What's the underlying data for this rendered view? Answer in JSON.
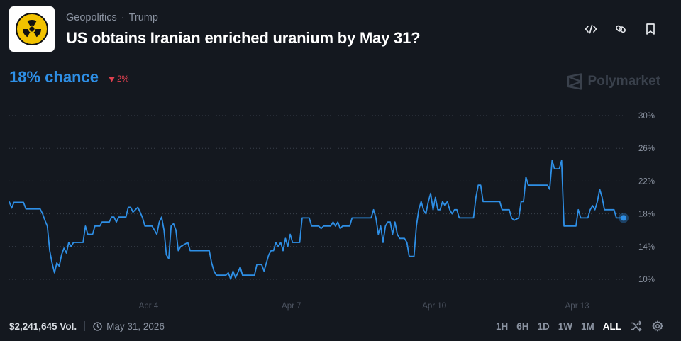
{
  "header": {
    "breadcrumb": [
      "Geopolitics",
      "Trump"
    ],
    "separator": "·",
    "title": "US obtains Iranian enriched uranium by May 31?"
  },
  "icons": {
    "market": "radiation-icon",
    "actions": [
      "embed-code-icon",
      "link-icon",
      "bookmark-icon"
    ],
    "brand": "polymarket-logo-icon",
    "delta": "down-triangle-icon",
    "date": "clock-icon",
    "tools": [
      "shuffle-icon",
      "gear-icon"
    ]
  },
  "summary": {
    "chance": "18% chance",
    "delta": "2%",
    "brand": "Polymarket"
  },
  "footer": {
    "volume": "$2,241,645 Vol.",
    "end_date": "May 31, 2026",
    "ranges": [
      "1H",
      "6H",
      "1D",
      "1W",
      "1M",
      "ALL"
    ],
    "active_range": "ALL"
  },
  "colors": {
    "background": "#14181f",
    "line": "#2e8fe6",
    "delta": "#e0404f",
    "grid": "#3a414c",
    "muted_text": "#8a92a0"
  },
  "chart_data": {
    "type": "line",
    "ylim": [
      8,
      31
    ],
    "yticks": [
      30,
      26,
      22,
      18,
      14,
      10
    ],
    "ytick_labels": [
      "30%",
      "26%",
      "22%",
      "18%",
      "14%",
      "10%"
    ],
    "x_unit": "days from Apr 1",
    "xticks": [
      3,
      6,
      9,
      12
    ],
    "xtick_labels": [
      "Apr 4",
      "Apr 7",
      "Apr 10",
      "Apr 13"
    ],
    "xlim": [
      0.0,
      12.4
    ],
    "grid": true,
    "series": [
      {
        "values": [
          [
            0.0,
            19.5
          ],
          [
            0.05,
            18.7
          ],
          [
            0.1,
            19.4
          ],
          [
            0.3,
            19.4
          ],
          [
            0.35,
            18.6
          ],
          [
            0.65,
            18.6
          ],
          [
            0.7,
            18.0
          ],
          [
            0.75,
            17.2
          ],
          [
            0.8,
            16.5
          ],
          [
            0.85,
            13.5
          ],
          [
            0.9,
            12.0
          ],
          [
            0.95,
            10.8
          ],
          [
            1.0,
            12.0
          ],
          [
            1.05,
            11.6
          ],
          [
            1.1,
            13.0
          ],
          [
            1.15,
            13.8
          ],
          [
            1.2,
            13.2
          ],
          [
            1.25,
            14.5
          ],
          [
            1.3,
            14.0
          ],
          [
            1.35,
            14.5
          ],
          [
            1.55,
            14.5
          ],
          [
            1.6,
            16.5
          ],
          [
            1.65,
            15.5
          ],
          [
            1.75,
            15.5
          ],
          [
            1.8,
            16.5
          ],
          [
            1.9,
            16.5
          ],
          [
            1.95,
            17.0
          ],
          [
            2.1,
            17.0
          ],
          [
            2.15,
            17.6
          ],
          [
            2.2,
            17.6
          ],
          [
            2.25,
            17.0
          ],
          [
            2.3,
            17.6
          ],
          [
            2.45,
            17.6
          ],
          [
            2.5,
            18.8
          ],
          [
            2.55,
            18.8
          ],
          [
            2.6,
            18.2
          ],
          [
            2.7,
            18.8
          ],
          [
            2.75,
            18.2
          ],
          [
            2.8,
            17.5
          ],
          [
            2.85,
            16.5
          ],
          [
            2.95,
            16.5
          ],
          [
            3.0,
            16.5
          ],
          [
            3.05,
            16.0
          ],
          [
            3.1,
            15.5
          ],
          [
            3.15,
            17.0
          ],
          [
            3.2,
            17.6
          ],
          [
            3.25,
            16.0
          ],
          [
            3.3,
            13.0
          ],
          [
            3.35,
            12.5
          ],
          [
            3.4,
            16.5
          ],
          [
            3.45,
            16.8
          ],
          [
            3.5,
            16.0
          ],
          [
            3.55,
            13.5
          ],
          [
            3.6,
            14.0
          ],
          [
            3.75,
            14.5
          ],
          [
            3.8,
            13.5
          ],
          [
            3.95,
            13.5
          ],
          [
            4.0,
            13.5
          ],
          [
            4.1,
            13.5
          ],
          [
            4.15,
            13.5
          ],
          [
            4.2,
            13.5
          ],
          [
            4.25,
            12.0
          ],
          [
            4.3,
            11.0
          ],
          [
            4.35,
            10.5
          ],
          [
            4.55,
            10.5
          ],
          [
            4.6,
            10.8
          ],
          [
            4.65,
            10.0
          ],
          [
            4.7,
            11.0
          ],
          [
            4.75,
            10.2
          ],
          [
            4.8,
            10.8
          ],
          [
            4.85,
            11.5
          ],
          [
            4.9,
            10.5
          ],
          [
            5.0,
            10.5
          ],
          [
            5.1,
            10.5
          ],
          [
            5.15,
            10.5
          ],
          [
            5.2,
            11.8
          ],
          [
            5.3,
            11.8
          ],
          [
            5.35,
            11.0
          ],
          [
            5.4,
            12.0
          ],
          [
            5.45,
            13.0
          ],
          [
            5.5,
            13.5
          ],
          [
            5.55,
            13.5
          ],
          [
            5.6,
            14.5
          ],
          [
            5.65,
            14.0
          ],
          [
            5.7,
            14.5
          ],
          [
            5.75,
            13.5
          ],
          [
            5.8,
            15.0
          ],
          [
            5.85,
            14.0
          ],
          [
            5.9,
            15.5
          ],
          [
            5.95,
            14.5
          ],
          [
            6.1,
            14.5
          ],
          [
            6.15,
            17.5
          ],
          [
            6.3,
            17.5
          ],
          [
            6.35,
            16.5
          ],
          [
            6.5,
            16.5
          ],
          [
            6.55,
            16.2
          ],
          [
            6.6,
            16.5
          ],
          [
            6.75,
            16.5
          ],
          [
            6.8,
            17.0
          ],
          [
            6.85,
            16.5
          ],
          [
            6.9,
            17.0
          ],
          [
            6.95,
            16.2
          ],
          [
            7.0,
            16.5
          ],
          [
            7.15,
            16.5
          ],
          [
            7.2,
            17.5
          ],
          [
            7.6,
            17.5
          ],
          [
            7.65,
            18.5
          ],
          [
            7.7,
            17.5
          ],
          [
            7.75,
            15.5
          ],
          [
            7.8,
            16.5
          ],
          [
            7.85,
            14.5
          ],
          [
            7.9,
            16.5
          ],
          [
            7.95,
            17.0
          ],
          [
            8.0,
            17.0
          ],
          [
            8.05,
            15.5
          ],
          [
            8.1,
            17.0
          ],
          [
            8.15,
            15.5
          ],
          [
            8.2,
            15.0
          ],
          [
            8.3,
            15.0
          ],
          [
            8.35,
            14.5
          ],
          [
            8.4,
            12.8
          ],
          [
            8.5,
            12.8
          ],
          [
            8.55,
            16.5
          ],
          [
            8.6,
            18.5
          ],
          [
            8.65,
            19.5
          ],
          [
            8.7,
            18.5
          ],
          [
            8.75,
            18.0
          ],
          [
            8.8,
            19.5
          ],
          [
            8.85,
            20.5
          ],
          [
            8.9,
            18.5
          ],
          [
            8.95,
            20.0
          ],
          [
            9.0,
            18.5
          ],
          [
            9.05,
            18.5
          ],
          [
            9.1,
            19.5
          ],
          [
            9.15,
            19.0
          ],
          [
            9.2,
            19.5
          ],
          [
            9.25,
            18.5
          ],
          [
            9.3,
            18.0
          ],
          [
            9.35,
            18.5
          ],
          [
            9.4,
            18.5
          ],
          [
            9.45,
            17.5
          ],
          [
            9.75,
            17.5
          ],
          [
            9.8,
            20.0
          ],
          [
            9.85,
            21.5
          ],
          [
            9.9,
            21.5
          ],
          [
            9.95,
            19.5
          ],
          [
            10.3,
            19.5
          ],
          [
            10.35,
            18.5
          ],
          [
            10.5,
            18.5
          ],
          [
            10.55,
            17.5
          ],
          [
            10.6,
            17.2
          ],
          [
            10.7,
            17.5
          ],
          [
            10.75,
            19.5
          ],
          [
            10.8,
            19.5
          ],
          [
            10.85,
            22.5
          ],
          [
            10.9,
            21.5
          ],
          [
            11.3,
            21.5
          ],
          [
            11.35,
            21.0
          ],
          [
            11.4,
            24.5
          ],
          [
            11.45,
            23.5
          ],
          [
            11.55,
            23.5
          ],
          [
            11.6,
            24.5
          ],
          [
            11.65,
            16.5
          ],
          [
            11.9,
            16.5
          ],
          [
            11.95,
            18.5
          ],
          [
            12.0,
            17.5
          ],
          [
            12.15,
            17.5
          ],
          [
            12.2,
            18.5
          ],
          [
            12.25,
            19.0
          ],
          [
            12.3,
            18.5
          ],
          [
            12.35,
            19.5
          ],
          [
            12.4,
            21.0
          ],
          [
            12.45,
            20.0
          ],
          [
            12.5,
            18.5
          ],
          [
            12.55,
            18.5
          ],
          [
            12.6,
            18.5
          ],
          [
            12.7,
            18.5
          ],
          [
            12.75,
            17.5
          ],
          [
            12.9,
            17.5
          ]
        ]
      }
    ]
  }
}
